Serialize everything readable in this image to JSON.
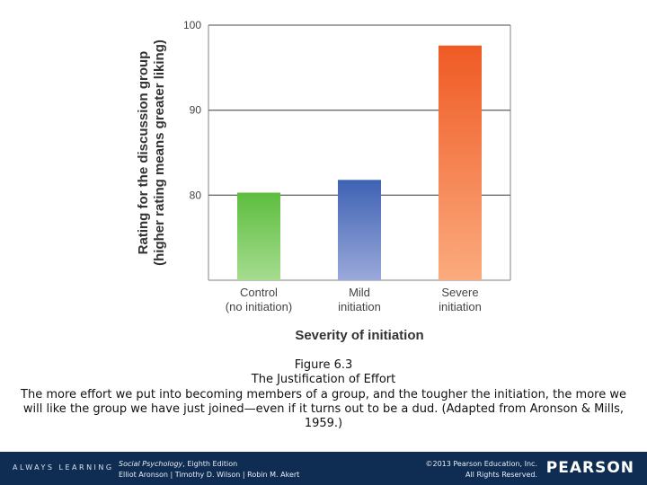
{
  "chart_data": {
    "type": "bar",
    "categories": [
      [
        "Control",
        "(no initiation)"
      ],
      [
        "Mild",
        "initiation"
      ],
      [
        "Severe",
        "initiation"
      ]
    ],
    "values": [
      80.3,
      81.8,
      97.6
    ],
    "xlabel": "Severity of initiation",
    "ylabel": [
      "Rating for the discussion group",
      "(higher rating means greater liking)"
    ],
    "ylim": [
      70,
      100
    ],
    "yticks": [
      80,
      90,
      100
    ],
    "grid": true,
    "bar_colors": [
      [
        "#5dbd3e",
        "#a6dc8f"
      ],
      [
        "#3e62b4",
        "#9aa9da"
      ],
      [
        "#ef5a24",
        "#fbab7e"
      ]
    ]
  },
  "caption": {
    "number": "Figure 6.3",
    "title": "The Justification of Effort",
    "description": "The more effort we put into becoming members of a group, and the tougher the initiation, the more we will like the group we have just joined—even if it turns out to be a dud. (Adapted from Aronson & Mills, 1959.)"
  },
  "footer": {
    "brand": "ALWAYS LEARNING",
    "book_title": "Social Psychology",
    "book_edition": ", Eighth Edition",
    "authors": "Elliot Aronson | Timothy D. Wilson | Robin M. Akert",
    "copyright_line1": "©2013 Pearson Education, Inc.",
    "copyright_line2": "All Rights Reserved.",
    "logo": "PEARSON"
  }
}
